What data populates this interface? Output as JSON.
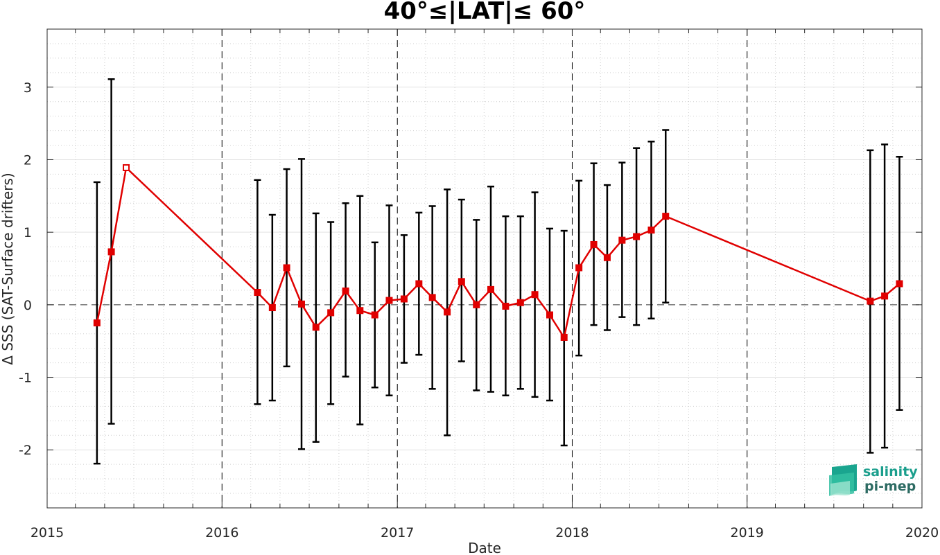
{
  "chart_data": {
    "type": "line",
    "title": "40°≤|LAT|≤ 60°",
    "xlabel": "Date",
    "ylabel": "Δ SSS (SAT-Surface drifters)",
    "xlim": [
      "2015-01-01",
      "2020-01-01"
    ],
    "ylim": [
      -2.8,
      3.8
    ],
    "x_tick_labels": [
      "2015",
      "2016",
      "2017",
      "2018",
      "2019",
      "2020"
    ],
    "y_tick_labels": [
      "-2",
      "-1",
      "0",
      "1",
      "2",
      "3"
    ],
    "y_ticks": [
      -2,
      -1,
      0,
      1,
      2,
      3
    ],
    "grid": true,
    "year_boundaries_dashed": true,
    "zero_line_dashed": true,
    "series": [
      {
        "color": "#e00000",
        "errorbar_color": "#000000",
        "points": [
          {
            "x": "2015-04-15",
            "y": -0.25,
            "low": -2.19,
            "high": 1.69
          },
          {
            "x": "2015-05-15",
            "y": 0.73,
            "low": -1.64,
            "high": 3.11
          },
          {
            "x": "2015-06-15",
            "y": 1.89
          },
          {
            "x": "2016-03-15",
            "y": 0.17,
            "low": -1.37,
            "high": 1.72
          },
          {
            "x": "2016-04-15",
            "y": -0.04,
            "low": -1.32,
            "high": 1.24
          },
          {
            "x": "2016-05-15",
            "y": 0.51,
            "low": -0.85,
            "high": 1.87
          },
          {
            "x": "2016-06-15",
            "y": 0.01,
            "low": -1.99,
            "high": 2.01
          },
          {
            "x": "2016-07-15",
            "y": -0.31,
            "low": -1.89,
            "high": 1.26
          },
          {
            "x": "2016-08-15",
            "y": -0.11,
            "low": -1.37,
            "high": 1.14
          },
          {
            "x": "2016-09-15",
            "y": 0.19,
            "low": -0.99,
            "high": 1.4
          },
          {
            "x": "2016-10-15",
            "y": -0.08,
            "low": -1.65,
            "high": 1.5
          },
          {
            "x": "2016-11-15",
            "y": -0.14,
            "low": -1.14,
            "high": 0.86
          },
          {
            "x": "2016-12-15",
            "y": 0.06,
            "low": -1.25,
            "high": 1.37
          },
          {
            "x": "2017-01-15",
            "y": 0.08,
            "low": -0.8,
            "high": 0.96
          },
          {
            "x": "2017-02-15",
            "y": 0.29,
            "low": -0.69,
            "high": 1.27
          },
          {
            "x": "2017-03-15",
            "y": 0.1,
            "low": -1.16,
            "high": 1.36
          },
          {
            "x": "2017-04-15",
            "y": -0.1,
            "low": -1.8,
            "high": 1.59
          },
          {
            "x": "2017-05-15",
            "y": 0.32,
            "low": -0.78,
            "high": 1.45
          },
          {
            "x": "2017-06-15",
            "y": 0.0,
            "low": -1.18,
            "high": 1.17
          },
          {
            "x": "2017-07-15",
            "y": 0.21,
            "low": -1.2,
            "high": 1.63
          },
          {
            "x": "2017-08-15",
            "y": -0.02,
            "low": -1.25,
            "high": 1.22
          },
          {
            "x": "2017-09-15",
            "y": 0.03,
            "low": -1.16,
            "high": 1.22
          },
          {
            "x": "2017-10-15",
            "y": 0.14,
            "low": -1.27,
            "high": 1.55
          },
          {
            "x": "2017-11-15",
            "y": -0.14,
            "low": -1.32,
            "high": 1.05
          },
          {
            "x": "2017-12-15",
            "y": -0.45,
            "low": -1.94,
            "high": 1.02
          },
          {
            "x": "2018-01-15",
            "y": 0.51,
            "low": -0.7,
            "high": 1.71
          },
          {
            "x": "2018-02-15",
            "y": 0.83,
            "low": -0.28,
            "high": 1.95
          },
          {
            "x": "2018-03-15",
            "y": 0.65,
            "low": -0.35,
            "high": 1.65
          },
          {
            "x": "2018-04-15",
            "y": 0.89,
            "low": -0.17,
            "high": 1.96
          },
          {
            "x": "2018-05-15",
            "y": 0.94,
            "low": -0.28,
            "high": 2.16
          },
          {
            "x": "2018-06-15",
            "y": 1.03,
            "low": -0.19,
            "high": 2.25
          },
          {
            "x": "2018-07-15",
            "y": 1.22,
            "low": 0.03,
            "high": 2.41
          },
          {
            "x": "2019-09-15",
            "y": 0.05,
            "low": -2.04,
            "high": 2.13
          },
          {
            "x": "2019-10-15",
            "y": 0.12,
            "low": -1.97,
            "high": 2.21
          },
          {
            "x": "2019-11-15",
            "y": 0.29,
            "low": -1.45,
            "high": 2.04
          }
        ]
      }
    ]
  },
  "logo": {
    "line1": "salinity",
    "line2": "pi-mep",
    "color_text1": "#1a9e8c",
    "color_text2": "#2d6b63"
  },
  "colors": {
    "series_line": "#e00000",
    "marker_fill": "#e00000",
    "errorbar": "#000000",
    "axes": "#262626",
    "grid": "#d8d8d8"
  }
}
